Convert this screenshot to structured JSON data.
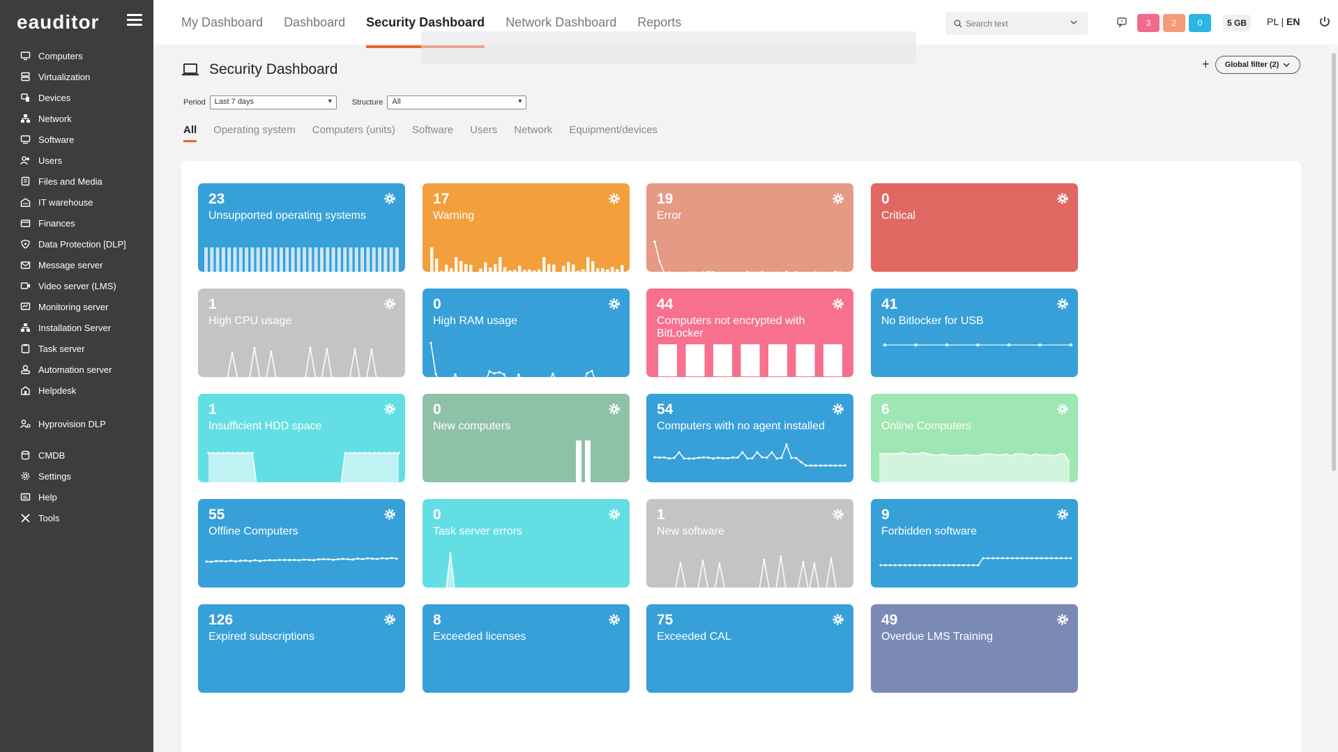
{
  "app": {
    "logo": "eauditor"
  },
  "sidebar": {
    "items": [
      {
        "label": "Computers",
        "icon": "monitor-icon"
      },
      {
        "label": "Virtualization",
        "icon": "server-icon"
      },
      {
        "label": "Devices",
        "icon": "devices-icon"
      },
      {
        "label": "Network",
        "icon": "network-icon"
      },
      {
        "label": "Software",
        "icon": "software-icon"
      },
      {
        "label": "Users",
        "icon": "users-icon"
      },
      {
        "label": "Files and Media",
        "icon": "files-icon"
      },
      {
        "label": "IT warehouse",
        "icon": "warehouse-icon"
      },
      {
        "label": "Finances",
        "icon": "finances-icon"
      },
      {
        "label": "Data Protection [DLP]",
        "icon": "shield-icon"
      },
      {
        "label": "Message server",
        "icon": "mail-icon"
      },
      {
        "label": "Video server (LMS)",
        "icon": "video-icon"
      },
      {
        "label": "Monitoring server",
        "icon": "monitoring-icon"
      },
      {
        "label": "Installation Server",
        "icon": "installation-icon"
      },
      {
        "label": "Task server",
        "icon": "task-icon"
      },
      {
        "label": "Automation server",
        "icon": "automation-icon"
      },
      {
        "label": "Helpdesk",
        "icon": "helpdesk-icon"
      }
    ],
    "items2": [
      {
        "label": "Hyprovision DLP",
        "icon": "hyprovision-icon"
      }
    ],
    "items3": [
      {
        "label": "CMDB",
        "icon": "database-icon"
      },
      {
        "label": "Settings",
        "icon": "gear-icon"
      },
      {
        "label": "Help",
        "icon": "help-icon"
      },
      {
        "label": "Tools",
        "icon": "tools-icon"
      }
    ]
  },
  "topbar": {
    "tabs": [
      "My Dashboard",
      "Dashboard",
      "Security Dashboard",
      "Network Dashboard",
      "Reports"
    ],
    "active_tab": "Security Dashboard",
    "search_placeholder": "Search text",
    "badges": [
      {
        "value": "3",
        "color": "#f06a8e"
      },
      {
        "value": "2",
        "color": "#f59b7a"
      },
      {
        "value": "0",
        "color": "#2bb5e6"
      }
    ],
    "storage": "5 GB",
    "lang_pl": "PL",
    "lang_sep": "|",
    "lang_en": "EN"
  },
  "page": {
    "title": "Security Dashboard",
    "global_filter": "Global filter (2)",
    "period_label": "Period",
    "period_value": "Last 7 days",
    "structure_label": "Structure",
    "structure_value": "All",
    "subtabs": [
      "All",
      "Operating system",
      "Computers (units)",
      "Software",
      "Users",
      "Network",
      "Equipment/devices"
    ]
  },
  "colors": {
    "blue": "#37a0d9",
    "orange": "#f29f3c",
    "salmon": "#e59a85",
    "red": "#e06762",
    "gray": "#c4c4c4",
    "pink": "#f7708e",
    "cyan": "#63dfe3",
    "green": "#8fc1a8",
    "lightgreen": "#9ee6b2",
    "slate": "#7b8ab5",
    "accent": "#e8672a"
  },
  "cards": [
    {
      "num": "23",
      "label": "Unsupported operating systems",
      "color": "#37a0d9",
      "chart": "bars-full"
    },
    {
      "num": "17",
      "label": "Warning",
      "color": "#f29f3c",
      "chart": "bars-var"
    },
    {
      "num": "19",
      "label": "Error",
      "color": "#e59a85",
      "chart": "line-drop"
    },
    {
      "num": "0",
      "label": "Critical",
      "color": "#e06762",
      "chart": "line-flat-dots"
    },
    {
      "num": "1",
      "label": "High CPU usage",
      "color": "#c4c4c4",
      "chart": "line-peaks"
    },
    {
      "num": "0",
      "label": "High RAM usage",
      "color": "#37a0d9",
      "chart": "line-ram"
    },
    {
      "num": "44",
      "label": "Computers not encrypted with BitLocker",
      "color": "#f7708e",
      "chart": "bars-7"
    },
    {
      "num": "41",
      "label": "No Bitlocker for USB",
      "color": "#37a0d9",
      "chart": "line-flat-mid"
    },
    {
      "num": "1",
      "label": "Insufficient HDD space",
      "color": "#63dfe3",
      "chart": "area-hdd"
    },
    {
      "num": "0",
      "label": "New computers",
      "color": "#8fc1a8",
      "chart": "bars-2"
    },
    {
      "num": "54",
      "label": "Computers with no agent installed",
      "color": "#37a0d9",
      "chart": "line-agent"
    },
    {
      "num": "6",
      "label": "Online Computers",
      "color": "#9ee6b2",
      "chart": "area-online"
    },
    {
      "num": "55",
      "label": "Offline Computers",
      "color": "#37a0d9",
      "chart": "line-offline"
    },
    {
      "num": "0",
      "label": "Task server errors",
      "color": "#63dfe3",
      "chart": "spike"
    },
    {
      "num": "1",
      "label": "New software",
      "color": "#c4c4c4",
      "chart": "line-peaks2"
    },
    {
      "num": "9",
      "label": "Forbidden software",
      "color": "#37a0d9",
      "chart": "line-step"
    },
    {
      "num": "126",
      "label": "Expired subscriptions",
      "color": "#37a0d9",
      "chart": "none"
    },
    {
      "num": "8",
      "label": "Exceeded licenses",
      "color": "#37a0d9",
      "chart": "none"
    },
    {
      "num": "75",
      "label": "Exceeded CAL",
      "color": "#37a0d9",
      "chart": "none"
    },
    {
      "num": "49",
      "label": "Overdue LMS Training",
      "color": "#7b8ab5",
      "chart": "none"
    }
  ]
}
